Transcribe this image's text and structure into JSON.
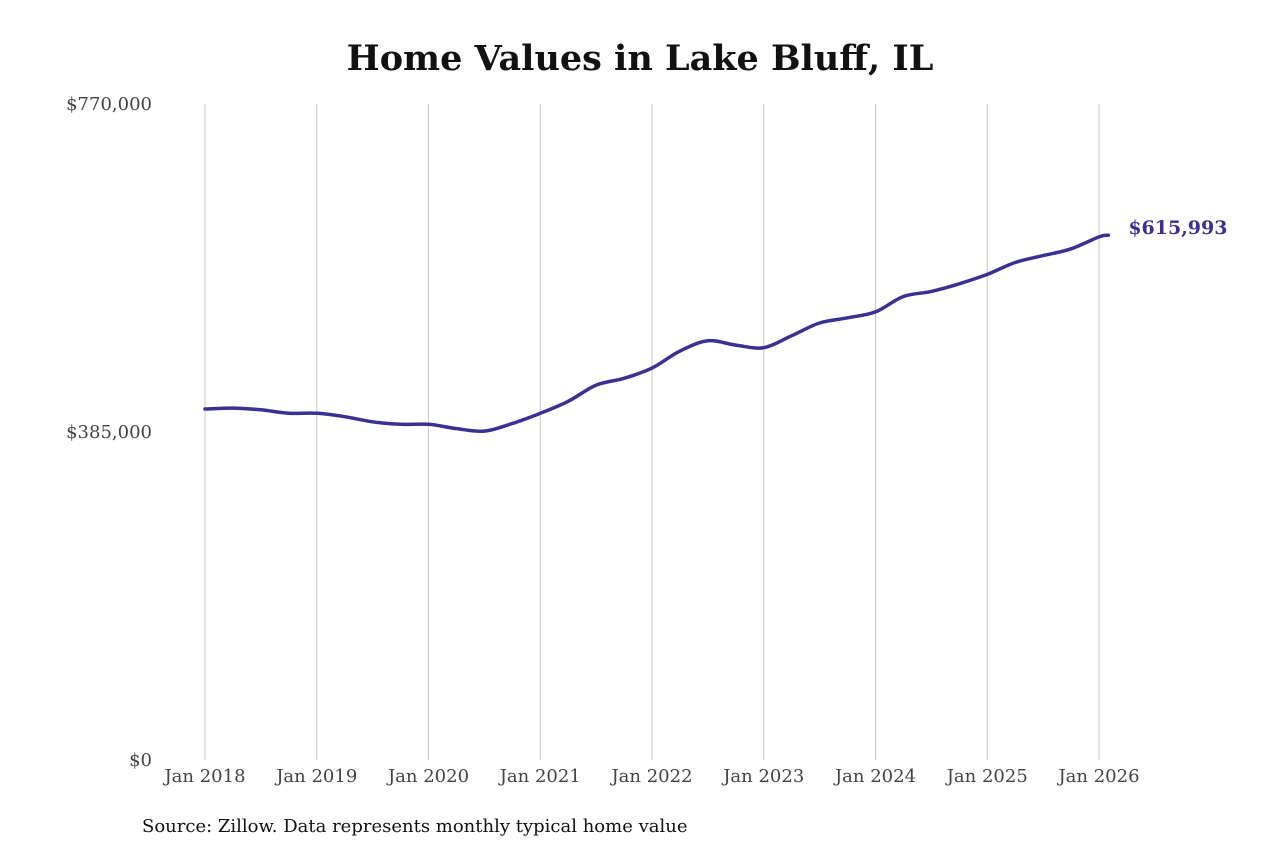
{
  "chart_data": {
    "type": "line",
    "title": "Home Values in Lake Bluff, IL",
    "xlabel": "",
    "ylabel": "",
    "ylim": [
      0,
      770000
    ],
    "xlim": [
      "2018-01",
      "2026-02"
    ],
    "y_ticks": [
      {
        "value": 0,
        "label": "$0"
      },
      {
        "value": 385000,
        "label": "$385,000"
      },
      {
        "value": 770000,
        "label": "$770,000"
      }
    ],
    "x_ticks": [
      {
        "date": "2018-01",
        "label": "Jan 2018"
      },
      {
        "date": "2019-01",
        "label": "Jan 2019"
      },
      {
        "date": "2020-01",
        "label": "Jan 2020"
      },
      {
        "date": "2021-01",
        "label": "Jan 2021"
      },
      {
        "date": "2022-01",
        "label": "Jan 2022"
      },
      {
        "date": "2023-01",
        "label": "Jan 2023"
      },
      {
        "date": "2024-01",
        "label": "Jan 2024"
      },
      {
        "date": "2025-01",
        "label": "Jan 2025"
      },
      {
        "date": "2026-01",
        "label": "Jan 2026"
      }
    ],
    "grid": "vertical",
    "series": [
      {
        "color": "#3b3193",
        "end_label": "$615,993",
        "points": [
          {
            "x": "2018-01",
            "y": 412000
          },
          {
            "x": "2018-04",
            "y": 413000
          },
          {
            "x": "2018-07",
            "y": 411000
          },
          {
            "x": "2018-10",
            "y": 407000
          },
          {
            "x": "2019-01",
            "y": 407000
          },
          {
            "x": "2019-04",
            "y": 403000
          },
          {
            "x": "2019-07",
            "y": 397000
          },
          {
            "x": "2019-10",
            "y": 394000
          },
          {
            "x": "2020-01",
            "y": 394000
          },
          {
            "x": "2020-04",
            "y": 389000
          },
          {
            "x": "2020-07",
            "y": 386000
          },
          {
            "x": "2020-10",
            "y": 395000
          },
          {
            "x": "2021-01",
            "y": 407000
          },
          {
            "x": "2021-04",
            "y": 421000
          },
          {
            "x": "2021-07",
            "y": 440000
          },
          {
            "x": "2021-10",
            "y": 448000
          },
          {
            "x": "2022-01",
            "y": 460000
          },
          {
            "x": "2022-04",
            "y": 480000
          },
          {
            "x": "2022-07",
            "y": 492000
          },
          {
            "x": "2022-10",
            "y": 487000
          },
          {
            "x": "2023-01",
            "y": 484000
          },
          {
            "x": "2023-04",
            "y": 498000
          },
          {
            "x": "2023-07",
            "y": 513000
          },
          {
            "x": "2023-10",
            "y": 519000
          },
          {
            "x": "2024-01",
            "y": 526000
          },
          {
            "x": "2024-04",
            "y": 544000
          },
          {
            "x": "2024-07",
            "y": 550000
          },
          {
            "x": "2024-10",
            "y": 559000
          },
          {
            "x": "2025-01",
            "y": 570000
          },
          {
            "x": "2025-04",
            "y": 584000
          },
          {
            "x": "2025-07",
            "y": 592000
          },
          {
            "x": "2025-10",
            "y": 600000
          },
          {
            "x": "2026-01",
            "y": 614000
          },
          {
            "x": "2026-02",
            "y": 615993
          }
        ]
      }
    ],
    "annotation": "Source: Zillow. Data represents monthly typical home value"
  }
}
